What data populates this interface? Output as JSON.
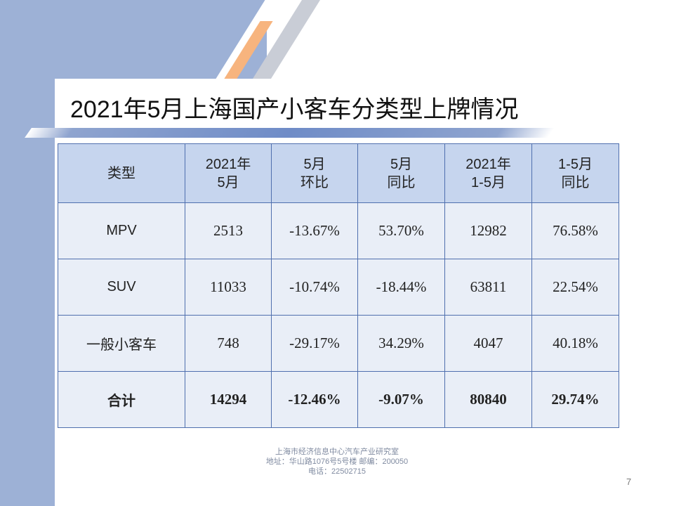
{
  "slide": {
    "title": "2021年5月上海国产小客车分类型上牌情况",
    "page_number": "7",
    "colors": {
      "background_band": "#9db1d6",
      "accent_orange": "#f7b47e",
      "header_fill": "#c6d5ee",
      "cell_fill": "#e9eef7",
      "border": "#4f6fae"
    }
  },
  "table": {
    "headers": [
      {
        "line1": "类型",
        "line2": ""
      },
      {
        "line1": "2021年",
        "line2": "5月"
      },
      {
        "line1": "5月",
        "line2": "环比"
      },
      {
        "line1": "5月",
        "line2": "同比"
      },
      {
        "line1": "2021年",
        "line2": "1-5月"
      },
      {
        "line1": "1-5月",
        "line2": "同比"
      }
    ],
    "rows": [
      {
        "type": "MPV",
        "may": "2513",
        "mom": "-13.67%",
        "yoy": "53.70%",
        "ytd": "12982",
        "ytd_yoy": "76.58%"
      },
      {
        "type": "SUV",
        "may": "11033",
        "mom": "-10.74%",
        "yoy": "-18.44%",
        "ytd": "63811",
        "ytd_yoy": "22.54%"
      },
      {
        "type": "一般小客车",
        "may": "748",
        "mom": "-29.17%",
        "yoy": "34.29%",
        "ytd": "4047",
        "ytd_yoy": "40.18%"
      },
      {
        "type": "合计",
        "may": "14294",
        "mom": "-12.46%",
        "yoy": "-9.07%",
        "ytd": "80840",
        "ytd_yoy": "29.74%"
      }
    ]
  },
  "footer": {
    "org": "上海市经济信息中心汽车产业研究室",
    "address": "地址：华山路1076号5号楼    邮编：200050",
    "phone": "电话：22502715"
  }
}
